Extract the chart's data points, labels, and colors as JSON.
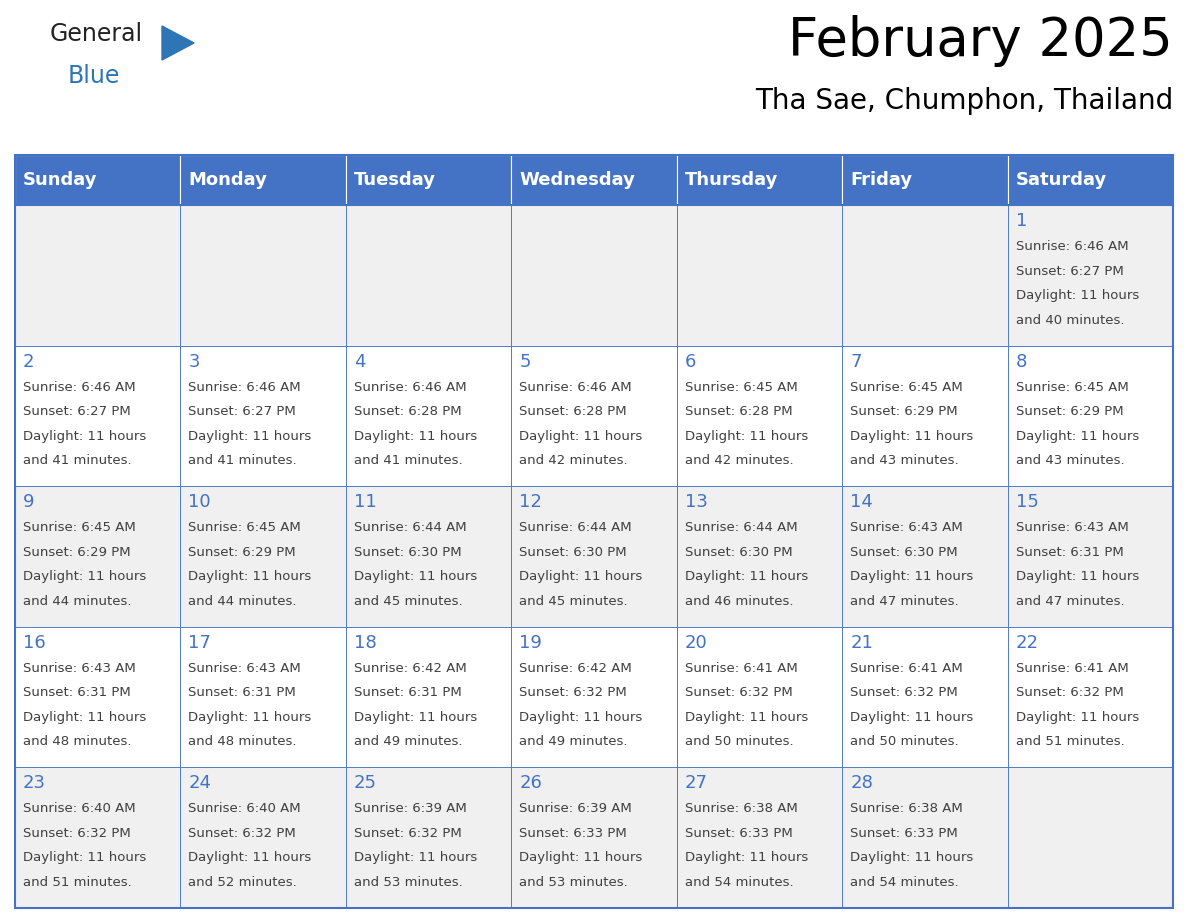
{
  "title": "February 2025",
  "subtitle": "Tha Sae, Chumphon, Thailand",
  "header_bg": "#4472C4",
  "header_text_color": "#FFFFFF",
  "days_of_week": [
    "Sunday",
    "Monday",
    "Tuesday",
    "Wednesday",
    "Thursday",
    "Friday",
    "Saturday"
  ],
  "cell_bg_even": "#F0F0F0",
  "cell_bg_odd": "#FFFFFF",
  "day_number_color": "#4472C4",
  "info_text_color": "#404040",
  "border_color": "#4472C4",
  "logo_general_color": "#222222",
  "logo_blue_color": "#2E75B6",
  "logo_triangle_color": "#2E75B6",
  "calendar": [
    [
      null,
      null,
      null,
      null,
      null,
      null,
      1
    ],
    [
      2,
      3,
      4,
      5,
      6,
      7,
      8
    ],
    [
      9,
      10,
      11,
      12,
      13,
      14,
      15
    ],
    [
      16,
      17,
      18,
      19,
      20,
      21,
      22
    ],
    [
      23,
      24,
      25,
      26,
      27,
      28,
      null
    ]
  ],
  "sunrise": {
    "1": "6:46 AM",
    "2": "6:46 AM",
    "3": "6:46 AM",
    "4": "6:46 AM",
    "5": "6:46 AM",
    "6": "6:45 AM",
    "7": "6:45 AM",
    "8": "6:45 AM",
    "9": "6:45 AM",
    "10": "6:45 AM",
    "11": "6:44 AM",
    "12": "6:44 AM",
    "13": "6:44 AM",
    "14": "6:43 AM",
    "15": "6:43 AM",
    "16": "6:43 AM",
    "17": "6:43 AM",
    "18": "6:42 AM",
    "19": "6:42 AM",
    "20": "6:41 AM",
    "21": "6:41 AM",
    "22": "6:41 AM",
    "23": "6:40 AM",
    "24": "6:40 AM",
    "25": "6:39 AM",
    "26": "6:39 AM",
    "27": "6:38 AM",
    "28": "6:38 AM"
  },
  "sunset": {
    "1": "6:27 PM",
    "2": "6:27 PM",
    "3": "6:27 PM",
    "4": "6:28 PM",
    "5": "6:28 PM",
    "6": "6:28 PM",
    "7": "6:29 PM",
    "8": "6:29 PM",
    "9": "6:29 PM",
    "10": "6:29 PM",
    "11": "6:30 PM",
    "12": "6:30 PM",
    "13": "6:30 PM",
    "14": "6:30 PM",
    "15": "6:31 PM",
    "16": "6:31 PM",
    "17": "6:31 PM",
    "18": "6:31 PM",
    "19": "6:32 PM",
    "20": "6:32 PM",
    "21": "6:32 PM",
    "22": "6:32 PM",
    "23": "6:32 PM",
    "24": "6:32 PM",
    "25": "6:32 PM",
    "26": "6:33 PM",
    "27": "6:33 PM",
    "28": "6:33 PM"
  },
  "daylight": {
    "1": "11 hours and 40 minutes.",
    "2": "11 hours and 41 minutes.",
    "3": "11 hours and 41 minutes.",
    "4": "11 hours and 41 minutes.",
    "5": "11 hours and 42 minutes.",
    "6": "11 hours and 42 minutes.",
    "7": "11 hours and 43 minutes.",
    "8": "11 hours and 43 minutes.",
    "9": "11 hours and 44 minutes.",
    "10": "11 hours and 44 minutes.",
    "11": "11 hours and 45 minutes.",
    "12": "11 hours and 45 minutes.",
    "13": "11 hours and 46 minutes.",
    "14": "11 hours and 47 minutes.",
    "15": "11 hours and 47 minutes.",
    "16": "11 hours and 48 minutes.",
    "17": "11 hours and 48 minutes.",
    "18": "11 hours and 49 minutes.",
    "19": "11 hours and 49 minutes.",
    "20": "11 hours and 50 minutes.",
    "21": "11 hours and 50 minutes.",
    "22": "11 hours and 51 minutes.",
    "23": "11 hours and 51 minutes.",
    "24": "11 hours and 52 minutes.",
    "25": "11 hours and 53 minutes.",
    "26": "11 hours and 53 minutes.",
    "27": "11 hours and 54 minutes.",
    "28": "11 hours and 54 minutes."
  }
}
